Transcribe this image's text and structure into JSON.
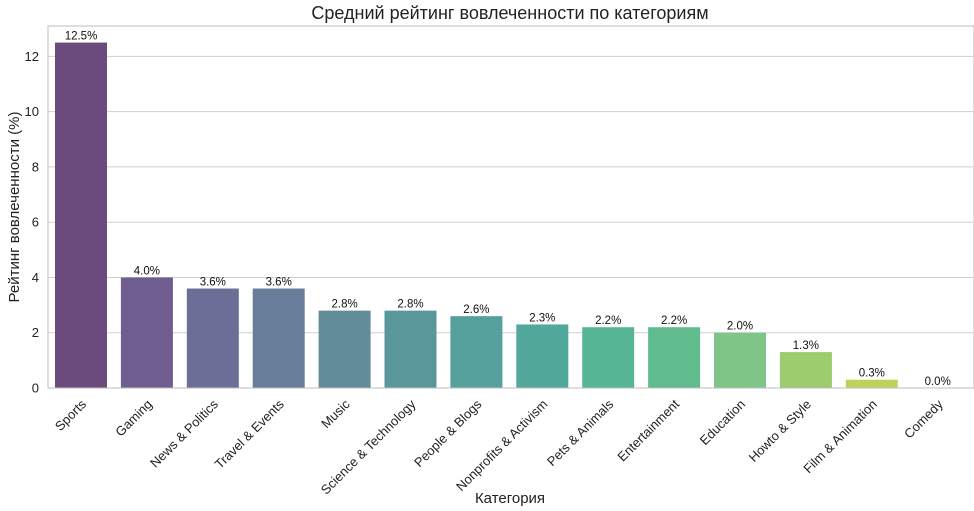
{
  "chart_data": {
    "type": "bar",
    "title": "Средний рейтинг вовлеченности по категориям",
    "xlabel": "Категория",
    "ylabel": "Рейтинг вовлеченности (%)",
    "ylim": [
      0,
      13.1
    ],
    "yticks": [
      0,
      2,
      4,
      6,
      8,
      10,
      12
    ],
    "grid": true,
    "categories": [
      "Sports",
      "Gaming",
      "News & Politics",
      "Travel & Events",
      "Music",
      "Science & Technology",
      "People & Blogs",
      "Nonprofits & Activism",
      "Pets & Animals",
      "Entertainment",
      "Education",
      "Howto & Style",
      "Film & Animation",
      "Comedy"
    ],
    "values": [
      12.5,
      4.0,
      3.6,
      3.6,
      2.8,
      2.8,
      2.6,
      2.3,
      2.2,
      2.2,
      2.0,
      1.3,
      0.3,
      0.0
    ],
    "data_labels": [
      "12.5%",
      "4.0%",
      "3.6%",
      "3.6%",
      "2.8%",
      "2.8%",
      "2.6%",
      "2.3%",
      "2.2%",
      "2.2%",
      "2.0%",
      "1.3%",
      "0.3%",
      "0.0%"
    ],
    "colors": [
      "#6b4a7c",
      "#6e5d8e",
      "#6b6e96",
      "#687d99",
      "#638c9b",
      "#5a979b",
      "#55a09d",
      "#52a89a",
      "#55b595",
      "#60bc8e",
      "#7ec587",
      "#9ccc6d",
      "#bcd25a",
      "#d8d84b"
    ]
  }
}
